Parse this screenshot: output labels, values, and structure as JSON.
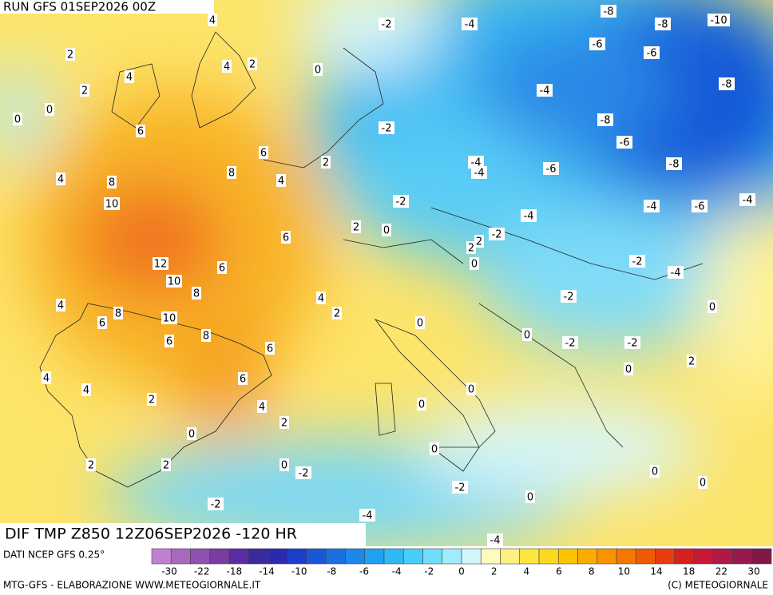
{
  "header": {
    "title": "RUN GFS 01SEP2026 00Z"
  },
  "footer": {
    "title": "DIF TMP Z850 12Z06SEP2026 -120 HR",
    "source": "DATI NCEP GFS 0.25°",
    "credit_left": "MTG-GFS - ELABORAZIONE WWW.METEOGIORNALE.IT",
    "credit_right": "(C) METEOGIORNALE"
  },
  "colorbar": {
    "colors": [
      "#c080d0",
      "#a868c0",
      "#9050b0",
      "#7a3ca0",
      "#5a2ea0",
      "#3a2a9c",
      "#2a2ab0",
      "#1a40c8",
      "#1858d8",
      "#1a70e0",
      "#1c88e8",
      "#20a0f0",
      "#30b8f4",
      "#48ccf8",
      "#70dcfa",
      "#a0ecfc",
      "#d0f6fc",
      "#fefac0",
      "#fef080",
      "#fee640",
      "#fcd820",
      "#fcc400",
      "#fcac00",
      "#f89400",
      "#f47800",
      "#f05a00",
      "#e83c10",
      "#d82020",
      "#c81838",
      "#b01848",
      "#981850",
      "#801848"
    ],
    "ticks": [
      -30,
      -22,
      -18,
      -14,
      -10,
      -8,
      -6,
      -4,
      -2,
      0,
      2,
      4,
      6,
      8,
      10,
      14,
      18,
      22,
      30
    ]
  },
  "map": {
    "labels": [
      "4",
      "-2",
      "-4",
      "-8",
      "-8",
      "-10",
      "2",
      "4",
      "4",
      "2",
      "0",
      "-6",
      "-6",
      "2",
      "-4",
      "-8",
      "0",
      "0",
      "-8",
      "6",
      "-2",
      "-6",
      "6",
      "2",
      "-4",
      "-4",
      "-6",
      "-8",
      "4",
      "8",
      "8",
      "4",
      "10",
      "-2",
      "-4",
      "-6",
      "-4",
      "-4",
      "2",
      "0",
      "6",
      "2",
      "2",
      "-2",
      "12",
      "6",
      "0",
      "-2",
      "-4",
      "10",
      "8",
      "4",
      "-2",
      "4",
      "8",
      "10",
      "2",
      "0",
      "6",
      "0",
      "0",
      "6",
      "8",
      "6",
      "-2",
      "-2",
      "2",
      "0",
      "4",
      "6",
      "4",
      "0",
      "2",
      "4",
      "0",
      "2",
      "0",
      "0",
      "2",
      "2",
      "0",
      "-2",
      "0",
      "-2",
      "0",
      "0",
      "-2",
      "-4",
      "-4"
    ]
  }
}
